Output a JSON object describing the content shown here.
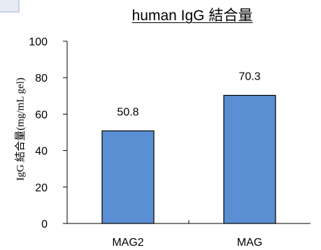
{
  "chart_data": {
    "type": "bar",
    "title": "human IgG 結合量",
    "xlabel": "",
    "ylabel": "IgG 結合量(mg/mL gel)",
    "categories": [
      "MAG2",
      "MAG"
    ],
    "values": [
      50.8,
      70.3
    ],
    "data_labels": [
      "50.8",
      "70.3"
    ],
    "ylim": [
      0,
      100
    ],
    "yticks": [
      "0",
      "20",
      "40",
      "60",
      "80",
      "100"
    ],
    "grid": false,
    "legend": "none",
    "bar_color": "#5b8fd3",
    "bar_edge_color": "#000000"
  }
}
